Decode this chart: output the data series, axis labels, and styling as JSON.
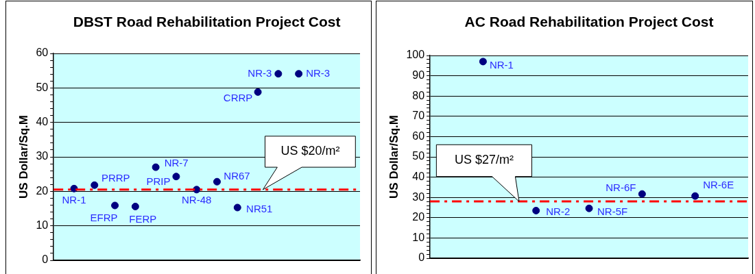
{
  "chart_data": [
    {
      "type": "scatter",
      "title": "DBST Road Rehabilitation Project Cost",
      "ylabel": "US Dollar/Sq.M",
      "categories": [
        null,
        null,
        null,
        null,
        null,
        null,
        null,
        null,
        null,
        null,
        null,
        null,
        null,
        null,
        null,
        null
      ],
      "values": [
        null,
        20.8,
        21.8,
        15.9,
        15.6,
        27.0,
        24.3,
        20.5,
        22.8,
        15.3,
        48.8,
        54.1,
        54.1,
        null,
        null,
        null
      ],
      "value_labels": [
        null,
        "NR-1",
        "PRRP",
        "EFRP",
        "FERP",
        "NR-7",
        "PRIP",
        "NR-48",
        "NR67",
        "NR51",
        "CRRP",
        "NR-3",
        "NR-3",
        null,
        null,
        null
      ],
      "color": "#000080",
      "ylim": [
        0,
        60
      ],
      "yticks": [
        0,
        {
          "value": 2,
          "label": null
        },
        {
          "value": 4,
          "label": null
        },
        {
          "value": 6,
          "label": null
        },
        {
          "value": 8,
          "label": null
        },
        10,
        {
          "value": 12,
          "label": null
        },
        {
          "value": 14,
          "label": null
        },
        {
          "value": 16,
          "label": null
        },
        {
          "value": 18,
          "label": null
        },
        20,
        {
          "value": 22,
          "label": null
        },
        {
          "value": 24,
          "label": null
        },
        {
          "value": 26,
          "label": null
        },
        {
          "value": 28,
          "label": null
        },
        30,
        {
          "value": 32,
          "label": null
        },
        {
          "value": 34,
          "label": null
        },
        {
          "value": 36,
          "label": null
        },
        {
          "value": 38,
          "label": null
        },
        40,
        {
          "value": 42,
          "label": null
        },
        {
          "value": 44,
          "label": null
        },
        {
          "value": 46,
          "label": null
        },
        {
          "value": 48,
          "label": null
        },
        50,
        {
          "value": 52,
          "label": null
        },
        {
          "value": 54,
          "label": null
        },
        {
          "value": 56,
          "label": null
        },
        {
          "value": 58,
          "label": null
        },
        60
      ],
      "grid": "y",
      "tick_labels": "y",
      "marker": "circle",
      "legend": false,
      "ref_lines": [
        {
          "axis": "y",
          "value": 20.5,
          "label": "US $20/m²",
          "color": "#ff0000",
          "line_style": "dashdot"
        }
      ]
    },
    {
      "type": "scatter",
      "title": "AC Road Rehabilitation Project Cost",
      "ylabel": "US Dollar/Sq.M",
      "categories": [
        null,
        null,
        null,
        null,
        null,
        null,
        null
      ],
      "values": [
        null,
        97,
        23.5,
        24.6,
        31.7,
        30.7,
        null
      ],
      "value_labels": [
        null,
        "NR-1",
        "NR-2",
        "NR-5F",
        "NR-6F",
        "NR-6E",
        null
      ],
      "color": "#000080",
      "ylim": [
        0,
        100
      ],
      "yticks": [
        0,
        {
          "value": 2,
          "label": null
        },
        {
          "value": 4,
          "label": null
        },
        {
          "value": 6,
          "label": null
        },
        {
          "value": 8,
          "label": null
        },
        10,
        {
          "value": 12,
          "label": null
        },
        {
          "value": 14,
          "label": null
        },
        {
          "value": 16,
          "label": null
        },
        {
          "value": 18,
          "label": null
        },
        20,
        {
          "value": 22,
          "label": null
        },
        {
          "value": 24,
          "label": null
        },
        {
          "value": 26,
          "label": null
        },
        {
          "value": 28,
          "label": null
        },
        30,
        {
          "value": 32,
          "label": null
        },
        {
          "value": 34,
          "label": null
        },
        {
          "value": 36,
          "label": null
        },
        {
          "value": 38,
          "label": null
        },
        40,
        {
          "value": 42,
          "label": null
        },
        {
          "value": 44,
          "label": null
        },
        {
          "value": 46,
          "label": null
        },
        {
          "value": 48,
          "label": null
        },
        50,
        {
          "value": 52,
          "label": null
        },
        {
          "value": 54,
          "label": null
        },
        {
          "value": 56,
          "label": null
        },
        {
          "value": 58,
          "label": null
        },
        60,
        {
          "value": 62,
          "label": null
        },
        {
          "value": 64,
          "label": null
        },
        {
          "value": 66,
          "label": null
        },
        {
          "value": 68,
          "label": null
        },
        70,
        {
          "value": 72,
          "label": null
        },
        {
          "value": 74,
          "label": null
        },
        {
          "value": 76,
          "label": null
        },
        {
          "value": 78,
          "label": null
        },
        80,
        {
          "value": 82,
          "label": null
        },
        {
          "value": 84,
          "label": null
        },
        {
          "value": 86,
          "label": null
        },
        {
          "value": 88,
          "label": null
        },
        90,
        {
          "value": 92,
          "label": null
        },
        {
          "value": 94,
          "label": null
        },
        {
          "value": 96,
          "label": null
        },
        {
          "value": 98,
          "label": null
        },
        100
      ],
      "grid": "y",
      "tick_labels": "y",
      "marker": "circle",
      "legend": false,
      "ref_lines": [
        {
          "axis": "y",
          "value": 28,
          "label": "US $27/m²",
          "color": "#ff0000",
          "line_style": "dashdot"
        }
      ]
    }
  ]
}
